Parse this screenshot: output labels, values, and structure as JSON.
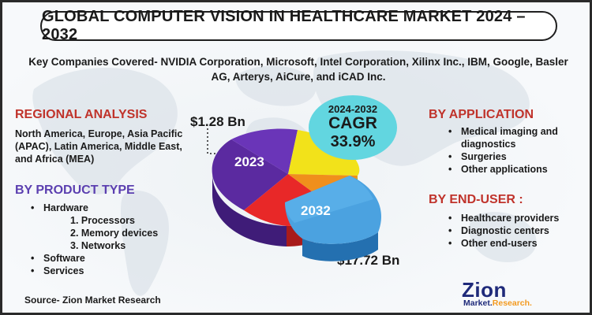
{
  "title": "GLOBAL COMPUTER VISION IN HEALTHCARE MARKET 2024 – 2032",
  "companies_text": "Key Companies Covered- NVIDIA Corporation, Microsoft, Intel Corporation, Xilinx Inc., IBM, Google, Basler AG, Arterys, AiCure, and iCAD Inc.",
  "regional": {
    "title": "REGIONAL ANALYSIS",
    "text": "North America, Europe, Asia Pacific (APAC), Latin America, Middle East, and Africa (MEA)"
  },
  "product": {
    "title": "BY PRODUCT TYPE",
    "hardware": "Hardware",
    "sub_items": [
      "1. Processors",
      "2. Memory devices",
      "3. Networks"
    ],
    "software": "Software",
    "services": "Services"
  },
  "application": {
    "title": "BY APPLICATION",
    "items": [
      "Medical imaging and diagnostics",
      "Surgeries",
      "Other applications"
    ]
  },
  "end_user": {
    "title": "BY END-USER  :",
    "items": [
      "Healthcare providers",
      "Diagnostic centers",
      "Other end-users"
    ]
  },
  "pie": {
    "value_2023": "$1.28 Bn",
    "value_2032": "$17.72 Bn",
    "label_2023": "2023",
    "label_2032": "2032",
    "colors": [
      "#f2e21a",
      "#e82828",
      "#f08f1c",
      "#4ba2e0",
      "#5b2aa0"
    ]
  },
  "cagr": {
    "years": "2024-2032",
    "label": "CAGR",
    "value": "33.9%",
    "bubble_color": "#62d6e0"
  },
  "source": "Source- Zion Market Research",
  "logo": {
    "main": "Zion",
    "sub_a": "Market.",
    "sub_b": "Research."
  }
}
